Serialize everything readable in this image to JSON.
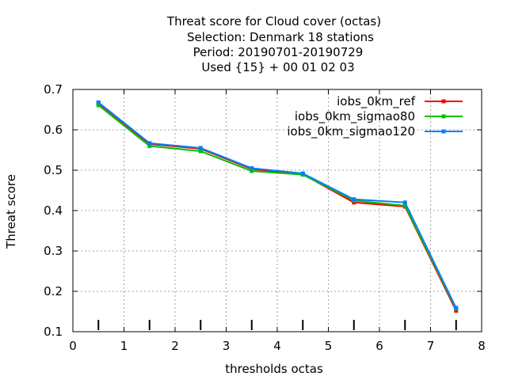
{
  "chart_data": {
    "type": "line",
    "title_lines": [
      "Threat score  for Cloud cover (octas)",
      "Selection: Denmark     18 stations",
      "Period: 20190701-20190729",
      "Used {15} + 00 01 02 03"
    ],
    "xlabel": "thresholds octas",
    "ylabel": "Threat score",
    "xlim": [
      0,
      8
    ],
    "ylim": [
      0.1,
      0.7
    ],
    "xticks": [
      "0",
      "1",
      "2",
      "3",
      "4",
      "5",
      "6",
      "7",
      "8"
    ],
    "yticks": [
      "0.1",
      "0.2",
      "0.3",
      "0.4",
      "0.5",
      "0.6",
      "0.7"
    ],
    "grid": true,
    "legend_position": "top-right",
    "x": [
      0.5,
      1.5,
      2.5,
      3.5,
      4.5,
      5.5,
      6.5,
      7.5
    ],
    "threshold_markers_x": [
      0.5,
      1.5,
      2.5,
      3.5,
      4.5,
      5.5,
      6.5,
      7.5
    ],
    "series": [
      {
        "name": "iobs_0km_ref",
        "color": "#ff0000",
        "values": [
          0.666,
          0.565,
          0.553,
          0.503,
          0.49,
          0.42,
          0.41,
          0.152
        ]
      },
      {
        "name": "iobs_0km_sigmao80",
        "color": "#00c000",
        "values": [
          0.661,
          0.56,
          0.547,
          0.498,
          0.489,
          0.425,
          0.412,
          0.157
        ]
      },
      {
        "name": "iobs_0km_sigmao120",
        "color": "#0080ff",
        "values": [
          0.668,
          0.567,
          0.555,
          0.505,
          0.492,
          0.428,
          0.42,
          0.159
        ]
      }
    ]
  }
}
